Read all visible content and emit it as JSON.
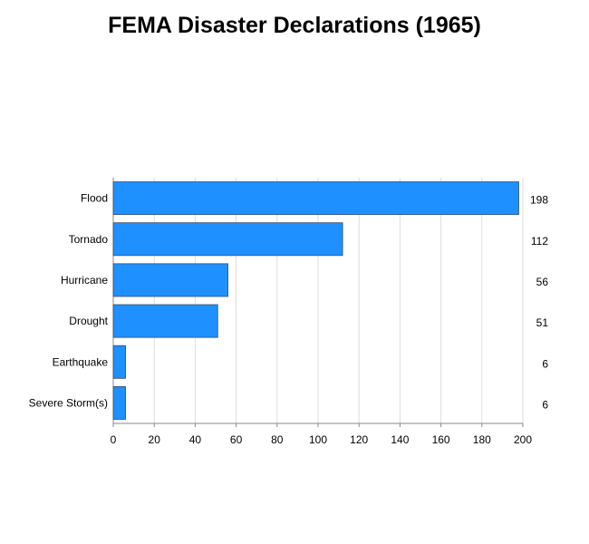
{
  "title": "FEMA Disaster Declarations (1965)",
  "colors": {
    "bar": "#1e90ff",
    "bar_stroke": "#3a4f66",
    "grid": "#dddddd",
    "axis": "#888888"
  },
  "chart_data": {
    "type": "bar",
    "orientation": "horizontal",
    "title": "FEMA Disaster Declarations (1965)",
    "categories": [
      "Flood",
      "Tornado",
      "Hurricane",
      "Drought",
      "Earthquake",
      "Severe Storm(s)"
    ],
    "values": [
      198,
      112,
      56,
      51,
      6,
      6
    ],
    "xlim": [
      0,
      200
    ],
    "xticks": [
      0,
      20,
      40,
      60,
      80,
      100,
      120,
      140,
      160,
      180,
      200
    ],
    "grid": true,
    "value_labels": "right-margin"
  }
}
